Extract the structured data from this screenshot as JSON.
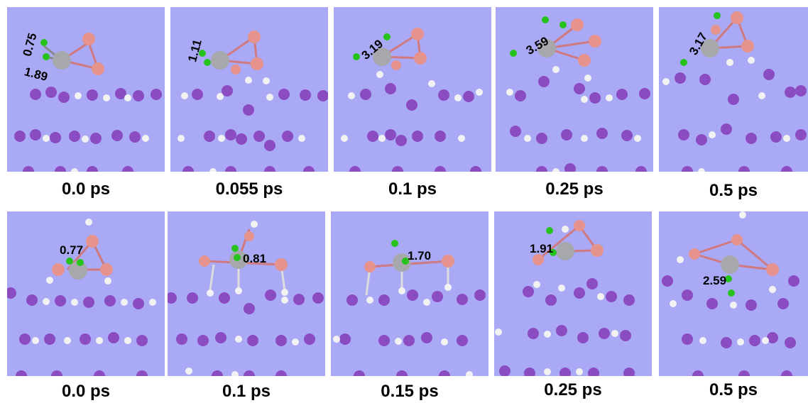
{
  "colors": {
    "background": "#a9a9f6",
    "metal_atom": "#a7a8ac",
    "boron_atom": "#e6938e",
    "halogen_atom": "#25c31c",
    "hydrogen_atom": "#f2f2f2",
    "substrate_atom": "#8b4bc1",
    "bond": "#d07a80"
  },
  "rows": [
    {
      "frames": [
        {
          "time": "0.0 ps",
          "distances": [
            "0.75",
            "1.89"
          ]
        },
        {
          "time": "0.055 ps",
          "distances": [
            "1.11"
          ]
        },
        {
          "time": "0.1 ps",
          "distances": [
            "3.19"
          ]
        },
        {
          "time": "0.25 ps",
          "distances": [
            "3.59"
          ]
        },
        {
          "time": "0.5 ps",
          "distances": [
            "3.17"
          ]
        }
      ]
    },
    {
      "frames": [
        {
          "time": "0.0 ps",
          "distances": [
            "0.77"
          ]
        },
        {
          "time": "0.1 ps",
          "distances": [
            "0.81"
          ]
        },
        {
          "time": "0.15 ps",
          "distances": [
            "1.70"
          ]
        },
        {
          "time": "0.25 ps",
          "distances": [
            "1.91"
          ]
        },
        {
          "time": "0.5 ps",
          "distances": [
            "2.59"
          ]
        }
      ]
    }
  ]
}
